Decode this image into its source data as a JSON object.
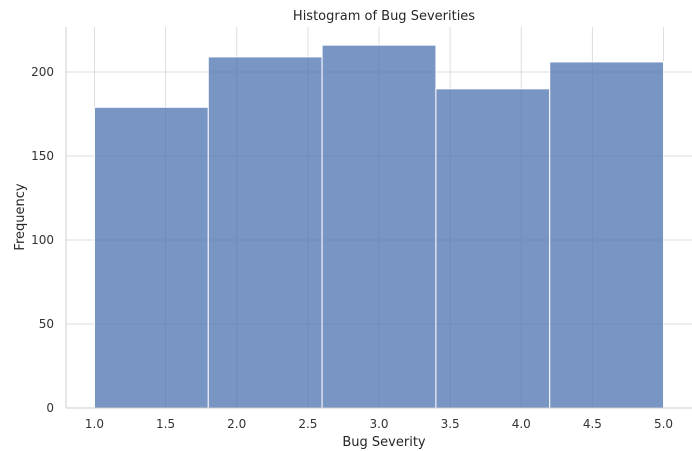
{
  "chart_data": {
    "type": "bar",
    "title": "Histogram of Bug Severities",
    "xlabel": "Bug Severity",
    "ylabel": "Frequency",
    "bins": [
      {
        "x0": 1.0,
        "x1": 1.8,
        "count": 179
      },
      {
        "x0": 1.8,
        "x1": 2.6,
        "count": 209
      },
      {
        "x0": 2.6,
        "x1": 3.4,
        "count": 216
      },
      {
        "x0": 3.4,
        "x1": 4.2,
        "count": 190
      },
      {
        "x0": 4.2,
        "x1": 5.0,
        "count": 206
      }
    ],
    "xticks": [
      "1.0",
      "1.5",
      "2.0",
      "2.5",
      "3.0",
      "3.5",
      "4.0",
      "4.5",
      "5.0"
    ],
    "xtick_values": [
      1.0,
      1.5,
      2.0,
      2.5,
      3.0,
      3.5,
      4.0,
      4.5,
      5.0
    ],
    "yticks": [
      "0",
      "50",
      "100",
      "150",
      "200"
    ],
    "ytick_values": [
      0,
      50,
      100,
      150,
      200
    ],
    "xlim": [
      0.8,
      5.2
    ],
    "ylim": [
      0,
      226.8
    ],
    "grid": true,
    "bar_color": "#4c72b0"
  }
}
